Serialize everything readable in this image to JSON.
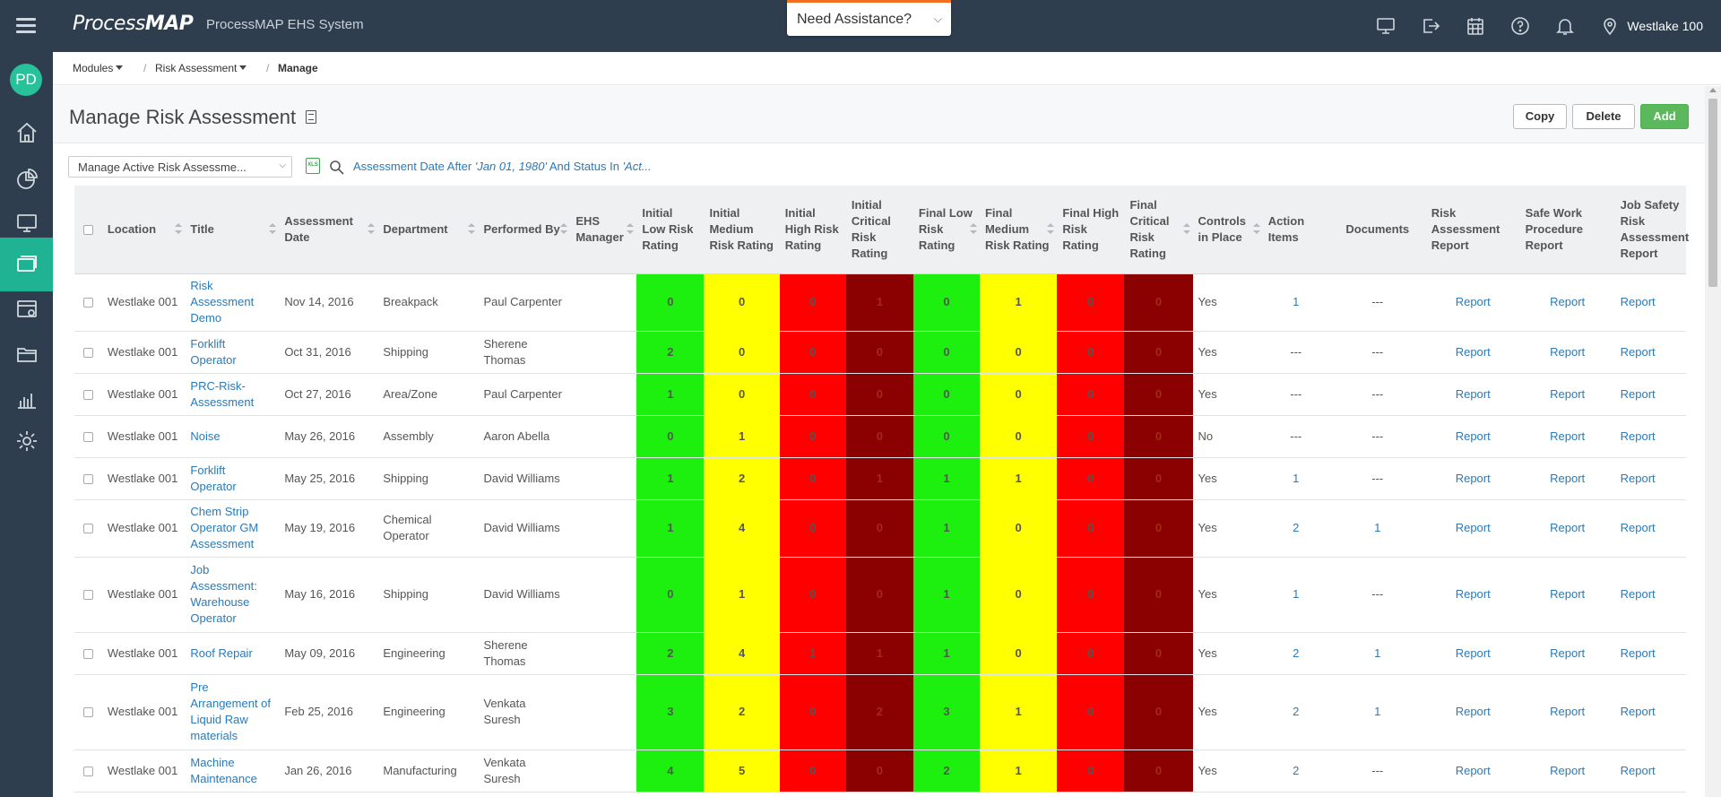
{
  "header": {
    "logo_prefix": "Process",
    "logo_suffix": "MAP",
    "app_title": "ProcessMAP EHS System",
    "assist_label": "Need Assistance?",
    "location": "Westlake 100"
  },
  "sidebar": {
    "avatar_initials": "PD"
  },
  "breadcrumb": {
    "modules": "Modules",
    "risk_assessment": "Risk Assessment",
    "current": "Manage"
  },
  "page": {
    "title": "Manage Risk Assessment",
    "copy_label": "Copy",
    "delete_label": "Delete",
    "add_label": "Add",
    "view_select": "Manage Active Risk Assessme...",
    "xls_label": "XLS",
    "filter_prefix": "Assessment Date After ",
    "filter_date": "'Jan 01, 1980'",
    "filter_mid": " And Status In ",
    "filter_status": "'Act..."
  },
  "colors": {
    "green": "#1df00e",
    "yellow": "#ffff00",
    "red": "#ff0000",
    "dark_red": "#8b0000",
    "link": "#2a7ab8",
    "accent": "#1fb393"
  },
  "table": {
    "columns": {
      "location": "Location",
      "title": "Title",
      "assessment_date": "Assessment Date",
      "department": "Department",
      "performed_by": "Performed By",
      "ehs_manager": "EHS Manager",
      "initial_low": "Initial Low Risk Rating",
      "initial_medium": "Initial Medium Risk Rating",
      "initial_high": "Initial High Risk Rating",
      "initial_critical": "Initial Critical Risk Rating",
      "final_low": "Final Low Risk Rating",
      "final_medium": "Final Medium Risk Rating",
      "final_high": "Final High Risk Rating",
      "final_critical": "Final Critical Risk Rating",
      "controls": "Controls in Place",
      "action_items": "Action Items",
      "documents": "Documents",
      "risk_report": "Risk Assessment Report",
      "safe_work": "Safe Work Procedure Report",
      "job_safety": "Job Safety Risk Assessment Report"
    },
    "rows": [
      {
        "location": "Westlake 001",
        "title": "Risk Assessment Demo",
        "date": "Nov 14, 2016",
        "department": "Breakpack",
        "performed_by": "Paul Carpenter",
        "ehs_manager": "",
        "il": "0",
        "im": "0",
        "ih": "0",
        "ic": "1",
        "fl": "0",
        "fm": "1",
        "fh": "0",
        "fc": "0",
        "controls": "Yes",
        "actions": "1",
        "documents": "---",
        "r1": "Report",
        "r2": "Report",
        "r3": "Report"
      },
      {
        "location": "Westlake 001",
        "title": "Forklift Operator",
        "date": "Oct 31, 2016",
        "department": "Shipping",
        "performed_by": "Sherene Thomas",
        "ehs_manager": "",
        "il": "2",
        "im": "0",
        "ih": "0",
        "ic": "0",
        "fl": "0",
        "fm": "0",
        "fh": "0",
        "fc": "0",
        "controls": "Yes",
        "actions": "---",
        "documents": "---",
        "r1": "Report",
        "r2": "Report",
        "r3": "Report"
      },
      {
        "location": "Westlake 001",
        "title": "PRC-Risk-Assessment",
        "date": "Oct 27, 2016",
        "department": "Area/Zone",
        "performed_by": "Paul Carpenter",
        "ehs_manager": "",
        "il": "1",
        "im": "0",
        "ih": "0",
        "ic": "0",
        "fl": "0",
        "fm": "0",
        "fh": "0",
        "fc": "0",
        "controls": "Yes",
        "actions": "---",
        "documents": "---",
        "r1": "Report",
        "r2": "Report",
        "r3": "Report"
      },
      {
        "location": "Westlake 001",
        "title": "Noise",
        "date": "May 26, 2016",
        "department": "Assembly",
        "performed_by": "Aaron Abella",
        "ehs_manager": "",
        "il": "0",
        "im": "1",
        "ih": "0",
        "ic": "0",
        "fl": "0",
        "fm": "0",
        "fh": "0",
        "fc": "0",
        "controls": "No",
        "actions": "---",
        "documents": "---",
        "r1": "Report",
        "r2": "Report",
        "r3": "Report"
      },
      {
        "location": "Westlake 001",
        "title": "Forklift Operator",
        "date": "May 25, 2016",
        "department": "Shipping",
        "performed_by": "David Williams",
        "ehs_manager": "",
        "il": "1",
        "im": "2",
        "ih": "0",
        "ic": "1",
        "fl": "1",
        "fm": "1",
        "fh": "0",
        "fc": "0",
        "controls": "Yes",
        "actions": "1",
        "documents": "---",
        "r1": "Report",
        "r2": "Report",
        "r3": "Report"
      },
      {
        "location": "Westlake 001",
        "title": "Chem Strip Operator GM Assessment",
        "date": "May 19, 2016",
        "department": "Chemical Operator",
        "performed_by": "David Williams",
        "ehs_manager": "",
        "il": "1",
        "im": "4",
        "ih": "0",
        "ic": "0",
        "fl": "1",
        "fm": "0",
        "fh": "0",
        "fc": "0",
        "controls": "Yes",
        "actions": "2",
        "documents": "1",
        "r1": "Report",
        "r2": "Report",
        "r3": "Report"
      },
      {
        "location": "Westlake 001",
        "title": "Job Assessment: Warehouse Operator",
        "date": "May 16, 2016",
        "department": "Shipping",
        "performed_by": "David Williams",
        "ehs_manager": "",
        "il": "0",
        "im": "1",
        "ih": "0",
        "ic": "0",
        "fl": "1",
        "fm": "0",
        "fh": "0",
        "fc": "0",
        "controls": "Yes",
        "actions": "1",
        "documents": "---",
        "r1": "Report",
        "r2": "Report",
        "r3": "Report"
      },
      {
        "location": "Westlake 001",
        "title": "Roof Repair",
        "date": "May 09, 2016",
        "department": "Engineering",
        "performed_by": "Sherene Thomas",
        "ehs_manager": "",
        "il": "2",
        "im": "4",
        "ih": "1",
        "ic": "1",
        "fl": "1",
        "fm": "0",
        "fh": "0",
        "fc": "0",
        "controls": "Yes",
        "actions": "2",
        "documents": "1",
        "r1": "Report",
        "r2": "Report",
        "r3": "Report"
      },
      {
        "location": "Westlake 001",
        "title": "Pre Arrangement of Liquid Raw materials",
        "date": "Feb 25, 2016",
        "department": "Engineering",
        "performed_by": "Venkata Suresh",
        "ehs_manager": "",
        "il": "3",
        "im": "2",
        "ih": "0",
        "ic": "2",
        "fl": "3",
        "fm": "1",
        "fh": "0",
        "fc": "0",
        "controls": "Yes",
        "actions": "2",
        "documents": "1",
        "r1": "Report",
        "r2": "Report",
        "r3": "Report"
      },
      {
        "location": "Westlake 001",
        "title": "Machine Maintenance",
        "date": "Jan 26, 2016",
        "department": "Manufacturing",
        "performed_by": "Venkata Suresh",
        "ehs_manager": "",
        "il": "4",
        "im": "5",
        "ih": "0",
        "ic": "0",
        "fl": "2",
        "fm": "1",
        "fh": "0",
        "fc": "0",
        "controls": "Yes",
        "actions": "2",
        "documents": "---",
        "r1": "Report",
        "r2": "Report",
        "r3": "Report"
      }
    ]
  }
}
